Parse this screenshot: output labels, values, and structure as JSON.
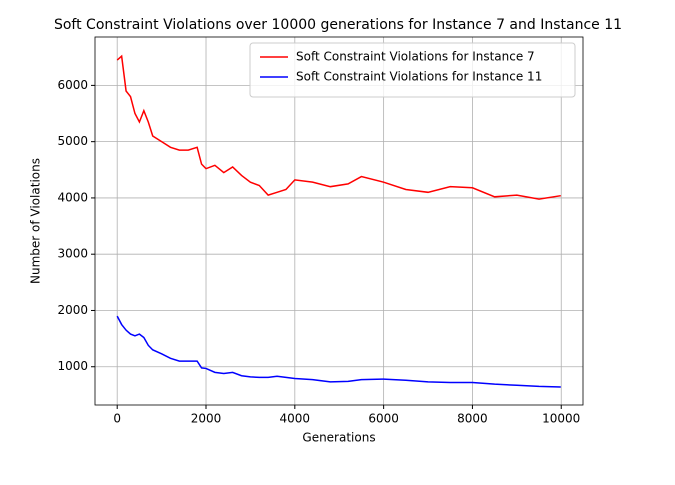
{
  "chart_data": {
    "type": "line",
    "title": "Soft Constraint Violations over 10000 generations for Instance 7 and Instance 11",
    "x_label": "Generations",
    "y_label": "Number of Violations",
    "x": [
      0,
      100,
      200,
      300,
      400,
      500,
      600,
      700,
      800,
      1000,
      1200,
      1400,
      1600,
      1800,
      1900,
      2000,
      2200,
      2400,
      2600,
      2800,
      3000,
      3200,
      3400,
      3600,
      3800,
      4000,
      4400,
      4800,
      5200,
      5500,
      6000,
      6500,
      7000,
      7500,
      8000,
      8500,
      9000,
      9500,
      9990
    ],
    "series": [
      {
        "name": "Soft Constraint Violations for Instance 7",
        "color": "#ff0000",
        "values": [
          6450,
          6520,
          5900,
          5800,
          5500,
          5350,
          5550,
          5350,
          5100,
          5000,
          4900,
          4850,
          4850,
          4900,
          4600,
          4520,
          4580,
          4450,
          4550,
          4400,
          4280,
          4220,
          4050,
          4100,
          4150,
          4320,
          4280,
          4200,
          4250,
          4380,
          4280,
          4150,
          4100,
          4200,
          4180,
          4020,
          4050,
          3980,
          4040
        ]
      },
      {
        "name": "Soft Constraint Violations for Instance 11",
        "color": "#0000ff",
        "values": [
          1900,
          1750,
          1650,
          1580,
          1550,
          1580,
          1520,
          1380,
          1300,
          1230,
          1150,
          1100,
          1100,
          1100,
          980,
          970,
          900,
          880,
          900,
          840,
          820,
          810,
          810,
          830,
          810,
          790,
          770,
          730,
          740,
          770,
          780,
          760,
          730,
          720,
          720,
          690,
          670,
          650,
          640
        ]
      }
    ],
    "xlim": [
      -500,
      10490
    ],
    "xticks": [
      0,
      2000,
      4000,
      6000,
      8000,
      10000
    ],
    "ylim": [
      320,
      6860
    ],
    "yticks": [
      1000,
      2000,
      3000,
      4000,
      5000,
      6000
    ],
    "grid": true,
    "legend": "upper right"
  }
}
